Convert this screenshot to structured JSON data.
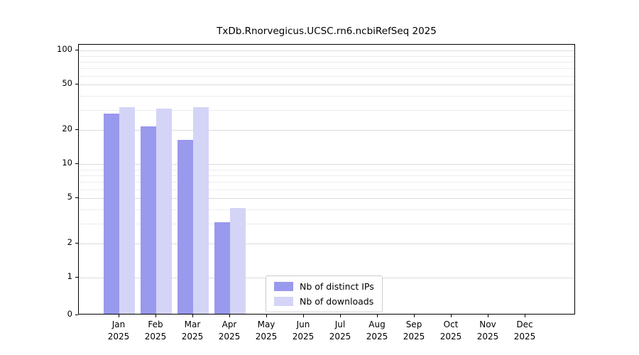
{
  "chart_data": {
    "type": "bar",
    "title": "TxDb.Rnorvegicus.UCSC.rn6.ncbiRefSeq 2025",
    "months": [
      "Jan",
      "Feb",
      "Mar",
      "Apr",
      "May",
      "Jun",
      "Jul",
      "Aug",
      "Sep",
      "Oct",
      "Nov",
      "Dec"
    ],
    "year": "2025",
    "series": [
      {
        "name": "Nb of distinct IPs",
        "color": "#9999ee",
        "values": [
          27,
          21,
          16,
          3,
          0,
          0,
          0,
          0,
          0,
          0,
          0,
          0
        ]
      },
      {
        "name": "Nb of downloads",
        "color": "#d4d4f7",
        "values": [
          31,
          30,
          31,
          4,
          0,
          0,
          0,
          0,
          0,
          0,
          0,
          0
        ]
      }
    ],
    "y_ticks": [
      0,
      1,
      2,
      5,
      10,
      20,
      50,
      100
    ],
    "ylim": [
      0,
      100
    ],
    "y_scale": "log-with-zero-baseline",
    "grid": "horizontal",
    "legend_position": "bottom-center-inside"
  }
}
